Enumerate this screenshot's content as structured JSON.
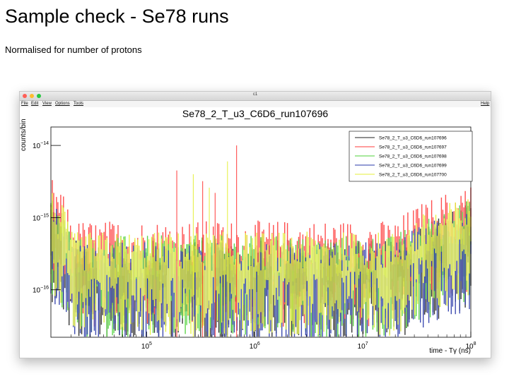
{
  "slide": {
    "title": "Sample check - Se78 runs",
    "subtitle": "Normalised for number of protons"
  },
  "window": {
    "title": "c1",
    "menu": [
      "File",
      "Edit",
      "View",
      "Options",
      "Tools"
    ],
    "help": "Help"
  },
  "chart_data": {
    "type": "line",
    "title": "Se78_2_T_u3_C6D6_run107696",
    "xlabel": "time - Tγ (ns)",
    "ylabel": "counts/bin",
    "xscale": "log",
    "yscale": "log",
    "xlim": [
      13000,
      100000000
    ],
    "ylim": [
      2.2e-17,
      1.8e-14
    ],
    "xticks": [
      {
        "value": 100000,
        "base": "10",
        "exp": "5"
      },
      {
        "value": 1000000,
        "base": "10",
        "exp": "6"
      },
      {
        "value": 10000000,
        "base": "10",
        "exp": "7"
      },
      {
        "value": 100000000,
        "base": "10",
        "exp": "8"
      }
    ],
    "yticks": [
      {
        "value": 1e-16,
        "base": "10",
        "exp": "−16"
      },
      {
        "value": 1e-15,
        "base": "10",
        "exp": "−15"
      },
      {
        "value": 1e-14,
        "base": "10",
        "exp": "−14"
      }
    ],
    "legend_position": "top-right",
    "grid": false,
    "series": [
      {
        "name": "Se78_2_T_u3_C6D6_run107696",
        "color": "#222222",
        "baseline": 1.4e-16,
        "spread": 0.55
      },
      {
        "name": "Se78_2_T_u3_C6D6_run107697",
        "color": "#ff3b3b",
        "baseline": 2.3e-16,
        "spread": 0.6
      },
      {
        "name": "Se78_2_T_u3_C6D6_run107698",
        "color": "#4fd13a",
        "baseline": 1.6e-16,
        "spread": 0.55
      },
      {
        "name": "Se78_2_T_u3_C6D6_run107699",
        "color": "#2a3aa8",
        "baseline": 1.3e-16,
        "spread": 0.55
      },
      {
        "name": "Se78_2_T_u3_C6D6_run107700",
        "color": "#e4ef3a",
        "baseline": 1.8e-16,
        "spread": 0.55
      }
    ],
    "peaks": [
      {
        "x": 190000,
        "y": 4.5e-15
      },
      {
        "x": 270000,
        "y": 4e-15
      },
      {
        "x": 330000,
        "y": 3.2e-15
      },
      {
        "x": 380000,
        "y": 2.6e-15
      },
      {
        "x": 430000,
        "y": 2.2e-15
      },
      {
        "x": 560000,
        "y": 6e-15
      },
      {
        "x": 680000,
        "y": 1e-14
      }
    ]
  }
}
